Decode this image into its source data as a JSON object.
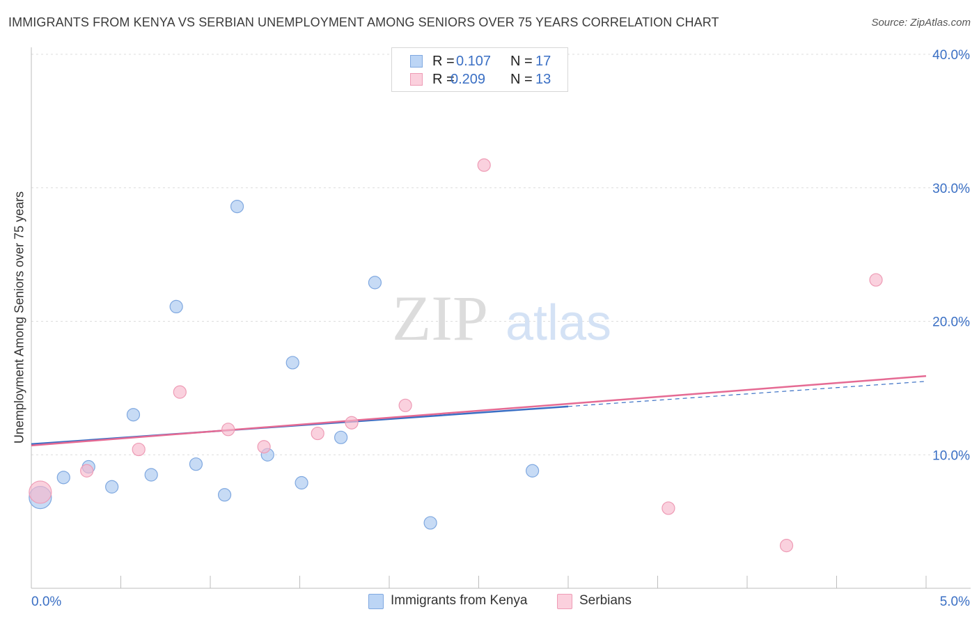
{
  "header": {
    "title": "IMMIGRANTS FROM KENYA VS SERBIAN UNEMPLOYMENT AMONG SENIORS OVER 75 YEARS CORRELATION CHART",
    "source": "Source: ZipAtlas.com"
  },
  "watermark": "ZIPatlas",
  "legend": {
    "kenya": {
      "r_label": "R =",
      "r_value": "0.107",
      "n_label": "N =",
      "n_value": "17"
    },
    "serbians": {
      "r_label": "R =",
      "r_value": "0.209",
      "n_label": "N =",
      "n_value": "13"
    }
  },
  "bottom_legend": {
    "kenya": "Immigrants from Kenya",
    "serbians": "Serbians"
  },
  "colors": {
    "kenya_fill": "#a9c8f0",
    "kenya_stroke": "#7fa8e0",
    "kenya_line": "#3a6fc4",
    "serbian_fill": "#f7b9cc",
    "serbian_stroke": "#ee9bb5",
    "serbian_line": "#e56a93",
    "tick_label": "#3a6fc4",
    "grid": "#dcdcdc"
  },
  "chart_data": {
    "type": "scatter",
    "title": "IMMIGRANTS FROM KENYA VS SERBIAN UNEMPLOYMENT AMONG SENIORS OVER 75 YEARS CORRELATION CHART",
    "xlabel": "",
    "ylabel": "Unemployment Among Seniors over 75 years",
    "xlim": [
      0,
      5
    ],
    "ylim": [
      0,
      40
    ],
    "x_tick_labels": [
      {
        "value": 0,
        "label": "0.0%"
      },
      {
        "value": 5,
        "label": "5.0%"
      }
    ],
    "y_ticks": [
      10,
      20,
      30,
      40
    ],
    "y_tick_labels": [
      "10.0%",
      "20.0%",
      "30.0%",
      "40.0%"
    ],
    "grid": true,
    "series": [
      {
        "name": "Immigrants from Kenya",
        "r": 0.107,
        "n": 17,
        "points": [
          {
            "x": 0.05,
            "y": 6.8,
            "size": "large"
          },
          {
            "x": 0.18,
            "y": 8.3
          },
          {
            "x": 0.32,
            "y": 9.1
          },
          {
            "x": 0.45,
            "y": 7.6
          },
          {
            "x": 0.57,
            "y": 13.0
          },
          {
            "x": 0.67,
            "y": 8.5
          },
          {
            "x": 0.81,
            "y": 21.1
          },
          {
            "x": 0.92,
            "y": 9.3
          },
          {
            "x": 1.08,
            "y": 7.0
          },
          {
            "x": 1.15,
            "y": 28.6
          },
          {
            "x": 1.32,
            "y": 10.0
          },
          {
            "x": 1.46,
            "y": 16.9
          },
          {
            "x": 1.51,
            "y": 7.9
          },
          {
            "x": 1.73,
            "y": 11.3
          },
          {
            "x": 1.92,
            "y": 22.9
          },
          {
            "x": 2.23,
            "y": 4.9
          },
          {
            "x": 2.8,
            "y": 8.8
          }
        ],
        "trend": {
          "x0": 0,
          "y0": 10.8,
          "x1": 5,
          "y1": 15.5,
          "solid_until_x": 3.0
        }
      },
      {
        "name": "Serbians",
        "r": 0.209,
        "n": 13,
        "points": [
          {
            "x": 0.05,
            "y": 7.2,
            "size": "large"
          },
          {
            "x": 0.31,
            "y": 8.8
          },
          {
            "x": 0.6,
            "y": 10.4
          },
          {
            "x": 0.83,
            "y": 14.7
          },
          {
            "x": 1.1,
            "y": 11.9
          },
          {
            "x": 1.3,
            "y": 10.6
          },
          {
            "x": 1.6,
            "y": 11.6
          },
          {
            "x": 1.79,
            "y": 12.4
          },
          {
            "x": 2.09,
            "y": 13.7
          },
          {
            "x": 2.53,
            "y": 31.7
          },
          {
            "x": 3.56,
            "y": 6.0
          },
          {
            "x": 4.22,
            "y": 3.2
          },
          {
            "x": 4.72,
            "y": 23.1
          }
        ],
        "trend": {
          "x0": 0,
          "y0": 10.7,
          "x1": 5,
          "y1": 15.9
        }
      }
    ]
  }
}
